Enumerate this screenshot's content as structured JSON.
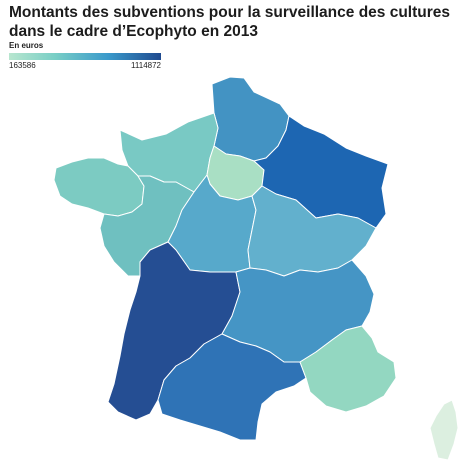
{
  "title": "Montants des subventions pour la surveillance des cultures dans le cadre d’Ecophyto en 2013",
  "legend": {
    "title": "En euros",
    "min_label": "163586",
    "max_label": "1114872",
    "min": 163586,
    "max": 1114872,
    "gradient": [
      "#b8e6cf",
      "#79cfc6",
      "#3a9acb",
      "#1f4a8f"
    ]
  },
  "regions": [
    {
      "id": "nord",
      "color": "#4393c3"
    },
    {
      "id": "normandie",
      "color": "#79c9c4"
    },
    {
      "id": "idf",
      "color": "#a9dfc4"
    },
    {
      "id": "grand-est",
      "color": "#1d66b2"
    },
    {
      "id": "bretagne",
      "color": "#7ccbc2"
    },
    {
      "id": "pays-loire",
      "color": "#6fc0c0"
    },
    {
      "id": "centre",
      "color": "#57a9cb"
    },
    {
      "id": "bourgogne",
      "color": "#62b0cd"
    },
    {
      "id": "nouvelle-aquitaine",
      "color": "#254e93"
    },
    {
      "id": "auvergne-rhone",
      "color": "#4595c5"
    },
    {
      "id": "occitanie",
      "color": "#2f73b6"
    },
    {
      "id": "paca",
      "color": "#93d7c1"
    },
    {
      "id": "corse",
      "color": "#dcefe0"
    }
  ]
}
